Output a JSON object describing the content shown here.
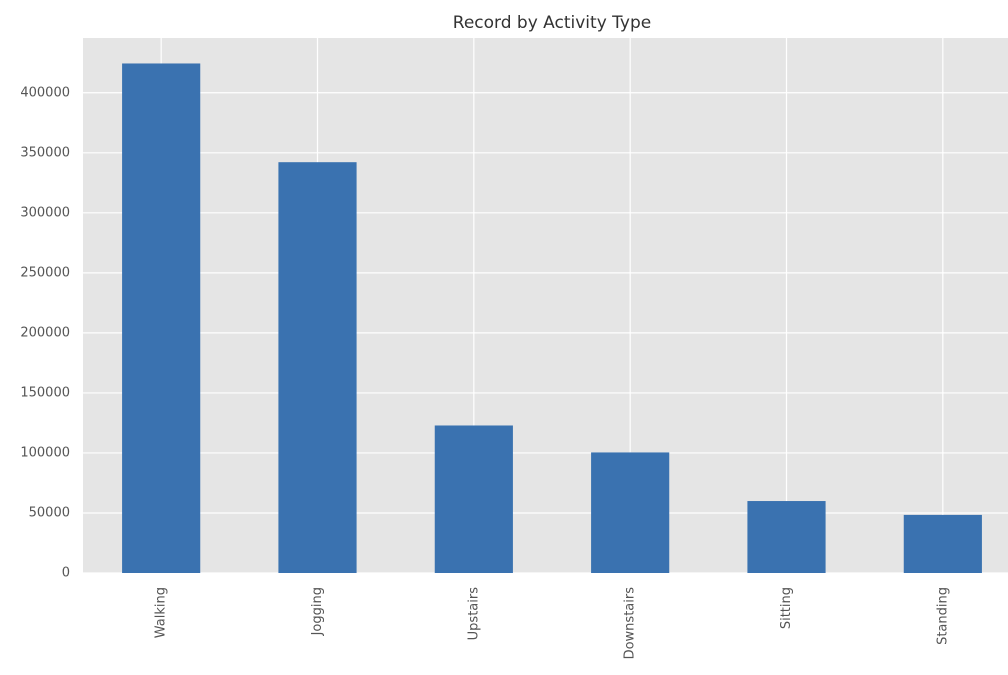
{
  "chart_data": {
    "type": "bar",
    "title": "Record by Activity Type",
    "categories": [
      "Walking",
      "Jogging",
      "Upstairs",
      "Downstairs",
      "Sitting",
      "Standing"
    ],
    "values": [
      424400,
      342177,
      122869,
      100427,
      59939,
      48395
    ],
    "color": "#3a72b0",
    "ylim": [
      0,
      445620
    ],
    "yticks": [
      0,
      50000,
      100000,
      150000,
      200000,
      250000,
      300000,
      350000,
      400000
    ],
    "grid": true
  }
}
